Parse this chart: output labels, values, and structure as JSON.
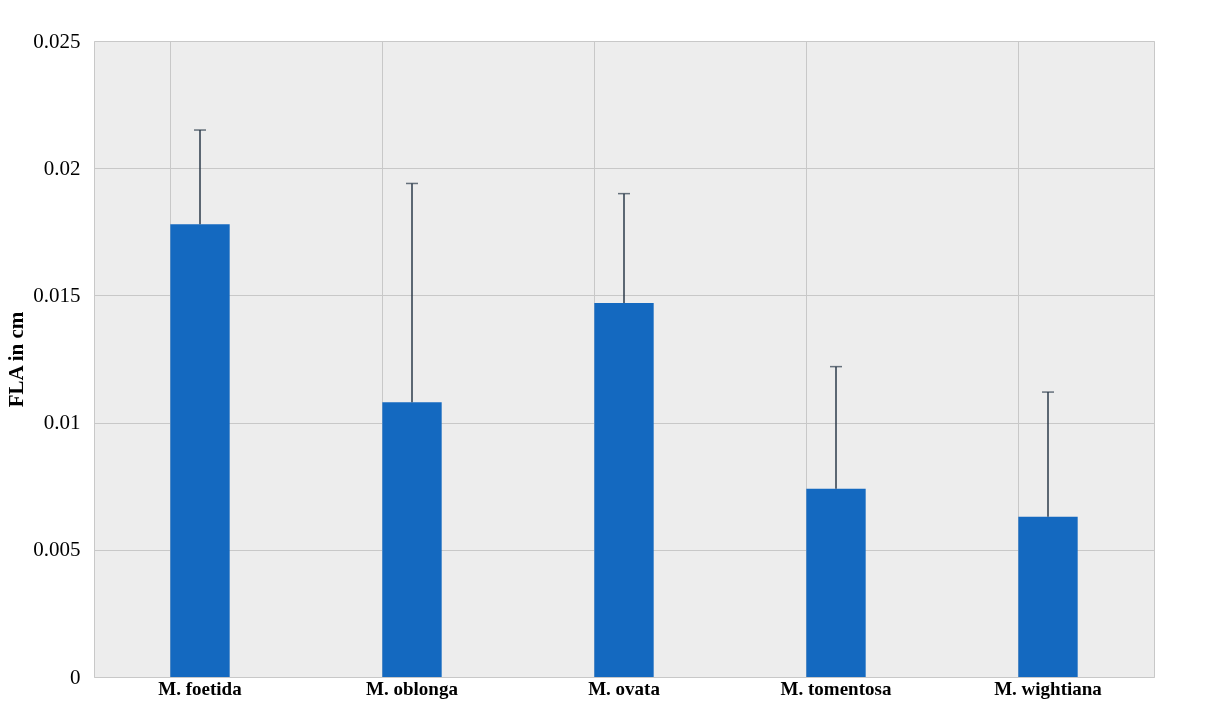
{
  "chart_data": {
    "type": "bar",
    "ylabel": "FLA in cm",
    "categories": [
      "M. foetida",
      "M. oblonga",
      "M. ovata",
      "M. tomentosa",
      "M. wightiana"
    ],
    "values": [
      0.0178,
      0.0108,
      0.0147,
      0.0074,
      0.0063
    ],
    "errors": [
      [
        0.0178,
        0.0215
      ],
      [
        0.0108,
        0.0194
      ],
      [
        0.0147,
        0.019
      ],
      [
        0.0074,
        0.0122
      ],
      [
        0.0063,
        0.0112
      ]
    ],
    "color": "#1469c0",
    "ylim": [
      0,
      0.025
    ],
    "yticks": [
      0,
      0.005,
      0.01,
      0.015,
      0.02,
      0.025
    ],
    "grid": true
  }
}
